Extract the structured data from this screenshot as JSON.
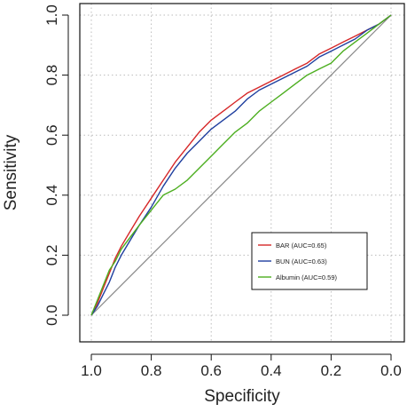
{
  "chart_data": {
    "type": "line",
    "title": "",
    "xlabel": "Specificity",
    "ylabel": "Sensitivity",
    "xlim": [
      1.0,
      0.0
    ],
    "ylim": [
      0.0,
      1.0
    ],
    "x_reversed": true,
    "grid": true,
    "legend_position": "bottom-right",
    "x_ticks": [
      "1.0",
      "0.8",
      "0.6",
      "0.4",
      "0.2",
      "0.0"
    ],
    "y_ticks": [
      "0.0",
      "0.2",
      "0.4",
      "0.6",
      "0.8",
      "1.0"
    ],
    "reference_line": {
      "from": [
        1.0,
        0.0
      ],
      "to": [
        0.0,
        1.0
      ],
      "color": "#888888"
    },
    "series": [
      {
        "name": "BAR (AUC=0.65)",
        "color": "#d62728",
        "points": [
          [
            1.0,
            0.0
          ],
          [
            0.98,
            0.04
          ],
          [
            0.96,
            0.09
          ],
          [
            0.94,
            0.14
          ],
          [
            0.92,
            0.19
          ],
          [
            0.9,
            0.23
          ],
          [
            0.87,
            0.28
          ],
          [
            0.84,
            0.33
          ],
          [
            0.8,
            0.39
          ],
          [
            0.76,
            0.45
          ],
          [
            0.72,
            0.51
          ],
          [
            0.68,
            0.56
          ],
          [
            0.64,
            0.61
          ],
          [
            0.6,
            0.65
          ],
          [
            0.56,
            0.68
          ],
          [
            0.52,
            0.71
          ],
          [
            0.48,
            0.74
          ],
          [
            0.44,
            0.76
          ],
          [
            0.4,
            0.78
          ],
          [
            0.36,
            0.8
          ],
          [
            0.32,
            0.82
          ],
          [
            0.28,
            0.84
          ],
          [
            0.24,
            0.87
          ],
          [
            0.2,
            0.89
          ],
          [
            0.16,
            0.91
          ],
          [
            0.12,
            0.93
          ],
          [
            0.08,
            0.95
          ],
          [
            0.04,
            0.97
          ],
          [
            0.0,
            1.0
          ]
        ]
      },
      {
        "name": "BUN (AUC=0.63)",
        "color": "#1f3f9f",
        "points": [
          [
            1.0,
            0.0
          ],
          [
            0.98,
            0.03
          ],
          [
            0.96,
            0.07
          ],
          [
            0.94,
            0.11
          ],
          [
            0.92,
            0.16
          ],
          [
            0.9,
            0.2
          ],
          [
            0.87,
            0.25
          ],
          [
            0.84,
            0.3
          ],
          [
            0.8,
            0.36
          ],
          [
            0.76,
            0.43
          ],
          [
            0.72,
            0.49
          ],
          [
            0.68,
            0.54
          ],
          [
            0.64,
            0.58
          ],
          [
            0.6,
            0.62
          ],
          [
            0.56,
            0.65
          ],
          [
            0.52,
            0.68
          ],
          [
            0.48,
            0.72
          ],
          [
            0.44,
            0.75
          ],
          [
            0.4,
            0.77
          ],
          [
            0.36,
            0.79
          ],
          [
            0.32,
            0.81
          ],
          [
            0.28,
            0.83
          ],
          [
            0.24,
            0.86
          ],
          [
            0.2,
            0.88
          ],
          [
            0.16,
            0.9
          ],
          [
            0.12,
            0.92
          ],
          [
            0.08,
            0.95
          ],
          [
            0.04,
            0.97
          ],
          [
            0.0,
            1.0
          ]
        ]
      },
      {
        "name": "Albumin (AUC=0.59)",
        "color": "#4cae1f",
        "points": [
          [
            1.0,
            0.0
          ],
          [
            0.98,
            0.05
          ],
          [
            0.96,
            0.1
          ],
          [
            0.94,
            0.15
          ],
          [
            0.92,
            0.18
          ],
          [
            0.9,
            0.22
          ],
          [
            0.87,
            0.26
          ],
          [
            0.84,
            0.3
          ],
          [
            0.8,
            0.35
          ],
          [
            0.76,
            0.4
          ],
          [
            0.72,
            0.42
          ],
          [
            0.68,
            0.45
          ],
          [
            0.64,
            0.49
          ],
          [
            0.6,
            0.53
          ],
          [
            0.56,
            0.57
          ],
          [
            0.52,
            0.61
          ],
          [
            0.48,
            0.64
          ],
          [
            0.44,
            0.68
          ],
          [
            0.4,
            0.71
          ],
          [
            0.36,
            0.74
          ],
          [
            0.32,
            0.77
          ],
          [
            0.28,
            0.8
          ],
          [
            0.24,
            0.82
          ],
          [
            0.2,
            0.84
          ],
          [
            0.16,
            0.88
          ],
          [
            0.12,
            0.91
          ],
          [
            0.08,
            0.94
          ],
          [
            0.04,
            0.97
          ],
          [
            0.0,
            1.0
          ]
        ]
      }
    ]
  }
}
